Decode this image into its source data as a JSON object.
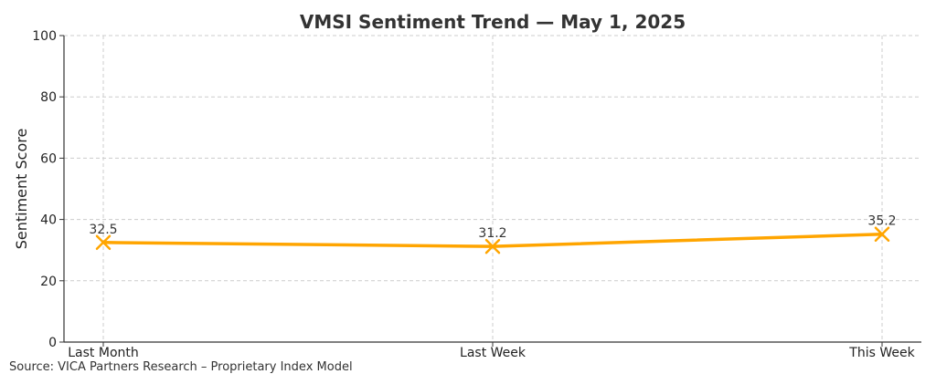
{
  "source_note": "Source: VICA Partners Research – Proprietary Index Model",
  "chart_data": {
    "type": "line",
    "title": "VMSI Sentiment Trend — May 1, 2025",
    "xlabel": "",
    "ylabel": "Sentiment Score",
    "categories": [
      "Last Month",
      "Last Week",
      "This Week"
    ],
    "series": [
      {
        "values": [
          32.5,
          31.2,
          35.2
        ],
        "color": "#FFA500",
        "marker": "x"
      }
    ],
    "data_labels": [
      "32.5",
      "31.2",
      "35.2"
    ],
    "ylim": [
      0,
      100
    ],
    "yticks": [
      0,
      20,
      40,
      60,
      80,
      100
    ],
    "grid": true,
    "legend": "none"
  }
}
